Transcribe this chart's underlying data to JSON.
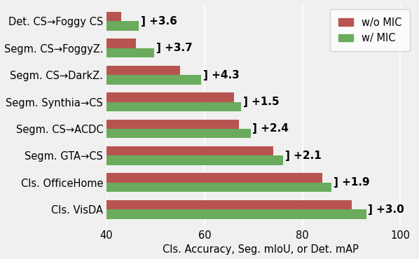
{
  "categories": [
    "Det. CS→Foggy CS",
    "Segm. CS→FoggyZ.",
    "Segm. CS→DarkZ.",
    "Segm. Synthia→CS",
    "Segm. CS→ACDC",
    "Segm. GTA→CS",
    "Cls. OfficeHome",
    "Cls. VisDA"
  ],
  "without_mic": [
    43.0,
    46.0,
    55.0,
    66.0,
    67.0,
    74.0,
    84.0,
    90.0
  ],
  "with_mic": [
    46.6,
    49.7,
    59.3,
    67.5,
    69.4,
    76.1,
    85.9,
    93.0
  ],
  "deltas": [
    "+3.6",
    "+3.7",
    "+4.3",
    "+1.5",
    "+2.4",
    "+2.1",
    "+1.9",
    "+3.0"
  ],
  "color_without": "#b85450",
  "color_with": "#6aab5e",
  "xlabel": "Cls. Accuracy, Seg. mIoU, or Det. mAP",
  "xlim_min": 40,
  "xlim_max": 103,
  "xticks": [
    40,
    60,
    80,
    100
  ],
  "legend_wo": "w/o MIC",
  "legend_w": "w/ MIC",
  "background_color": "#f0f0f0",
  "bar_height": 0.35,
  "fontsize_labels": 10.5,
  "fontsize_ticks": 10.5,
  "fontsize_delta": 11,
  "fontsize_legend": 10.5,
  "fontsize_xlabel": 10.5
}
